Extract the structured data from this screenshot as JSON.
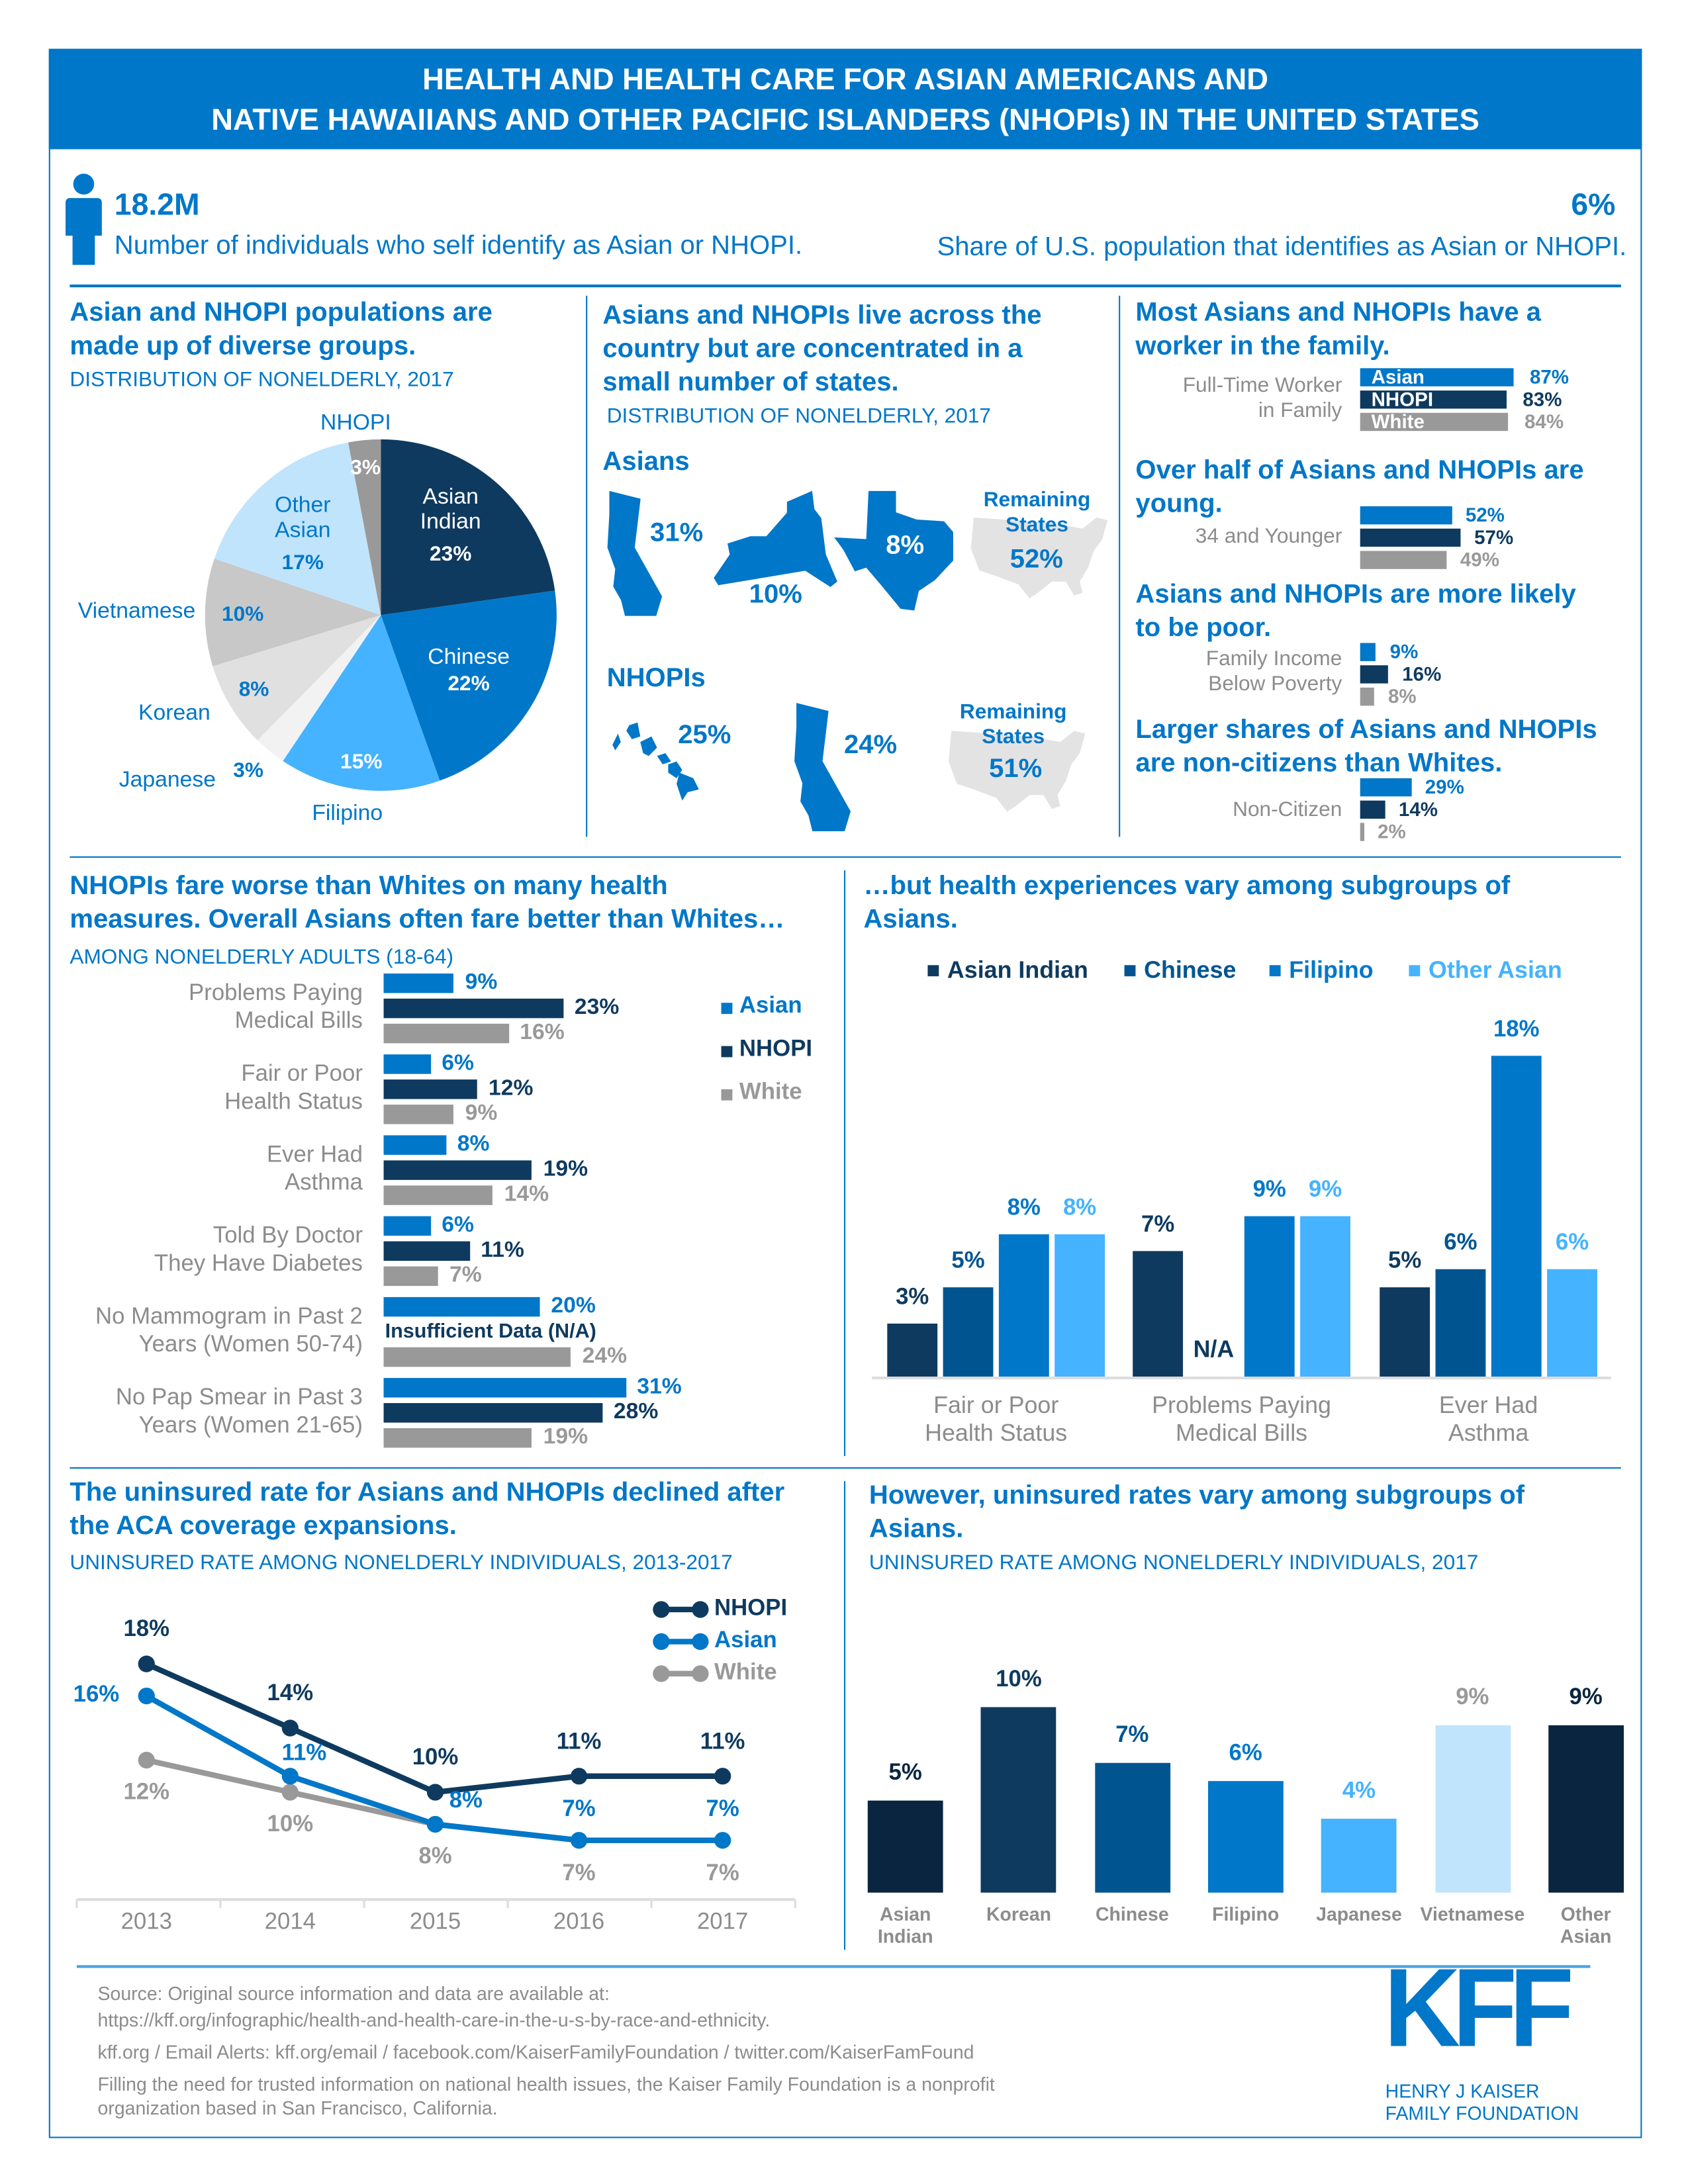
{
  "header": {
    "line1": "HEALTH AND HEALTH CARE FOR ASIAN AMERICANS AND",
    "line2": "NATIVE HAWAIIANS AND OTHER PACIFIC ISLANDERS (NHOPIs) IN THE UNITED STATES"
  },
  "stats": {
    "count_value": "18.2M",
    "count_label": "Number of individuals who self identify as Asian or NHOPI.",
    "share_value": "6%",
    "share_label": "Share of U.S. population that identifies as Asian or NHOPI.",
    "icon": "person-icon"
  },
  "colors": {
    "blue": "#0077c8",
    "navy": "#0f3a5f",
    "gray": "#999999",
    "light_blue": "#45b3ff",
    "pale_blue": "#c0e4fc"
  },
  "groups": {
    "title": "Asian and NHOPI populations are\nmade up of diverse groups.",
    "subtitle": "DISTRIBUTION OF NONELDERLY, 2017"
  },
  "states": {
    "title": "Asians and NHOPIs live across the\ncountry but are concentrated in a\nsmall number of states.",
    "subtitle": "DISTRIBUTION OF NONELDERLY, 2017",
    "asians": {
      "label": "Asians",
      "items": [
        {
          "state": "California",
          "value": "31%"
        },
        {
          "state": "New York",
          "value": "10%"
        },
        {
          "state": "Texas",
          "value": "8%"
        },
        {
          "state": "Remaining States",
          "label": "Remaining\nStates",
          "value": "52%"
        }
      ]
    },
    "nhopis": {
      "label": "NHOPIs",
      "items": [
        {
          "state": "Hawaii",
          "value": "25%"
        },
        {
          "state": "California",
          "value": "24%"
        },
        {
          "state": "Remaining States",
          "label": "Remaining\nStates",
          "value": "51%"
        }
      ]
    }
  },
  "facts": [
    {
      "title": "Most Asians and NHOPIs have a\nworker in the family.",
      "label": "Full-Time Worker\nin Family",
      "bars": [
        {
          "name": "Asian",
          "value": 87,
          "text": "87%"
        },
        {
          "name": "NHOPI",
          "value": 83,
          "text": "83%"
        },
        {
          "name": "White",
          "value": 84,
          "text": "84%"
        }
      ]
    },
    {
      "title": "Over half of Asians and NHOPIs are\nyoung.",
      "label": "34 and Younger",
      "bars": [
        {
          "value": 52,
          "text": "52%"
        },
        {
          "value": 57,
          "text": "57%"
        },
        {
          "value": 49,
          "text": "49%"
        }
      ]
    },
    {
      "title": "Asians and NHOPIs are more likely\nto be poor.",
      "label": "Family Income\nBelow Poverty",
      "bars": [
        {
          "value": 9,
          "text": "9%"
        },
        {
          "value": 16,
          "text": "16%"
        },
        {
          "value": 8,
          "text": "8%"
        }
      ]
    },
    {
      "title": "Larger shares of Asians and NHOPIs\nare non-citizens than Whites.",
      "label": "Non-Citizen",
      "bars": [
        {
          "value": 29,
          "text": "29%"
        },
        {
          "value": 14,
          "text": "14%"
        },
        {
          "value": 2,
          "text": "2%"
        }
      ]
    }
  ],
  "health": {
    "title": "NHOPIs fare worse than Whites on many health\nmeasures. Overall Asians often fare better than Whites…",
    "subtitle": "AMONG NONELDERLY ADULTS (18-64)",
    "na_text": "Insufficient Data (N/A)"
  },
  "subgroups": {
    "title": "…but health experiences vary among subgroups of\nAsians."
  },
  "uninsured": {
    "title": "The uninsured rate for Asians and NHOPIs declined after\nthe ACA coverage expansions.",
    "subtitle": "UNINSURED RATE AMONG NONELDERLY INDIVIDUALS, 2013-2017"
  },
  "uninsured_sub": {
    "title": "However, uninsured rates vary among subgroups of\nAsians.",
    "subtitle": "UNINSURED RATE AMONG NONELDERLY INDIVIDUALS, 2017"
  },
  "chart_data": [
    {
      "type": "pie",
      "slices": [
        {
          "label": "Asian\nIndian",
          "value": 23,
          "text": "23%",
          "color": "#0f3a5f"
        },
        {
          "label": "Chinese",
          "value": 22,
          "text": "22%",
          "color": "#0077c8"
        },
        {
          "label": "Filipino",
          "value": 15,
          "text": "15%",
          "color": "#45b3ff"
        },
        {
          "label": "Japanese",
          "value": 3,
          "text": "3%",
          "color": "#f2f2f2"
        },
        {
          "label": "Korean",
          "value": 8,
          "text": "8%",
          "color": "#e0e0e0"
        },
        {
          "label": "Vietnamese",
          "value": 10,
          "text": "10%",
          "color": "#c8c8c8"
        },
        {
          "label": "Other\nAsian",
          "value": 17,
          "text": "17%",
          "color": "#c0e4fc"
        },
        {
          "label": "NHOPI",
          "value": 3,
          "text": "3%",
          "color": "#999999"
        }
      ]
    },
    {
      "type": "bar",
      "orientation": "horizontal",
      "categories": [
        "Problems Paying\nMedical Bills",
        "Fair or Poor\nHealth Status",
        "Ever Had\nAsthma",
        "Told By Doctor\nThey Have Diabetes",
        "No Mammogram in Past 2\nYears (Women 50-74)",
        "No Pap Smear in Past 3\nYears (Women 21-65)"
      ],
      "series": [
        {
          "name": "Asian",
          "color": "#0077c8",
          "values": [
            9,
            6,
            8,
            6,
            20,
            31
          ]
        },
        {
          "name": "NHOPI",
          "color": "#0f3a5f",
          "values": [
            23,
            12,
            19,
            11,
            null,
            28
          ]
        },
        {
          "name": "White",
          "color": "#999999",
          "values": [
            16,
            9,
            14,
            7,
            24,
            19
          ]
        }
      ],
      "legend": "right"
    },
    {
      "type": "bar",
      "categories": [
        "Fair or Poor\nHealth Status",
        "Problems Paying\nMedical Bills",
        "Ever Had\nAsthma"
      ],
      "series": [
        {
          "name": "Asian Indian",
          "color": "#0f3a5f",
          "values": [
            3,
            7,
            5
          ]
        },
        {
          "name": "Chinese",
          "color": "#005591",
          "values": [
            5,
            null,
            6
          ]
        },
        {
          "name": "Filipino",
          "color": "#0077c8",
          "values": [
            8,
            9,
            18
          ]
        },
        {
          "name": "Other Asian",
          "color": "#45b3ff",
          "values": [
            8,
            9,
            6
          ]
        }
      ],
      "na_text": "N/A",
      "legend": "top"
    },
    {
      "type": "line",
      "x": [
        "2013",
        "2014",
        "2015",
        "2016",
        "2017"
      ],
      "series": [
        {
          "name": "NHOPI",
          "color": "#0f3a5f",
          "values": [
            18,
            14,
            10,
            11,
            11
          ]
        },
        {
          "name": "Asian",
          "color": "#0077c8",
          "values": [
            16,
            11,
            8,
            7,
            7
          ]
        },
        {
          "name": "White",
          "color": "#999999",
          "values": [
            12,
            10,
            8,
            7,
            7
          ]
        }
      ],
      "legend": "top-right"
    },
    {
      "type": "bar",
      "categories": [
        "Asian\nIndian",
        "Korean",
        "Chinese",
        "Filipino",
        "Japanese",
        "Vietnamese",
        "Other\nAsian"
      ],
      "values": [
        5,
        10,
        7,
        6,
        4,
        9,
        9
      ],
      "colors": [
        "#0a2540",
        "#0f3a5f",
        "#005591",
        "#0077c8",
        "#45b3ff",
        "#c0e4fc",
        "#0a2540"
      ],
      "label_colors": [
        "#0a2540",
        "#0f3a5f",
        "#005591",
        "#0077c8",
        "#45b3ff",
        "#999999",
        "#0a2540"
      ]
    }
  ],
  "footer": {
    "source": "Source: Original source information and data are available at:\nhttps://kff.org/infographic/health-and-health-care-in-the-u-s-by-race-and-ethnicity.",
    "links": "kff.org / Email Alerts: kff.org/email / facebook.com/KaiserFamilyFoundation / twitter.com/KaiserFamFound",
    "mission": "Filling the need for trusted information on national health issues, the Kaiser Family Foundation is a nonprofit\norganization based in San Francisco, California.",
    "logo": "KFF",
    "logo_sub": "HENRY J KAISER\nFAMILY FOUNDATION"
  }
}
